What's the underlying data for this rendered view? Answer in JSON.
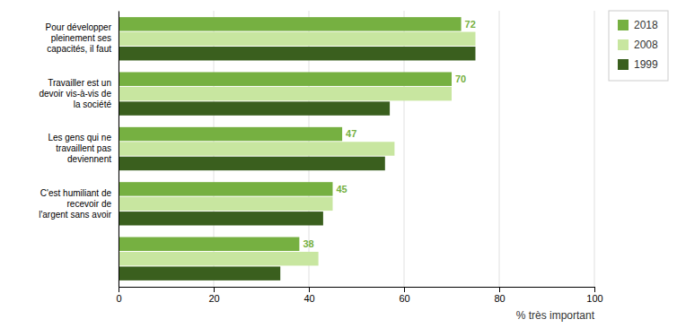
{
  "chart_data": {
    "type": "bar",
    "orientation": "horizontal",
    "categories": [
      "Pour développer\npleinement ses\ncapacités, il faut",
      "Travailler est un\ndevoir vis-à-vis de\nla société",
      "Les gens qui ne\ntravaillent pas\ndeviennent",
      "C'est humiliant de\nrecevoir de\nl'argent sans avoir",
      null
    ],
    "series": [
      {
        "name": "2018",
        "color": "#76b041",
        "values": [
          72,
          70,
          47,
          45,
          38
        ],
        "data_labels": true
      },
      {
        "name": "2008",
        "color": "#c8e6a0",
        "values": [
          75,
          70,
          58,
          45,
          42
        ]
      },
      {
        "name": "1999",
        "color": "#3a5f1e",
        "values": [
          75,
          57,
          56,
          43,
          34
        ]
      }
    ],
    "xlabel": "% très important",
    "xlim": [
      0,
      100
    ],
    "xticks": [
      0,
      20,
      40,
      60,
      80,
      100
    ],
    "grid": true,
    "legend": "right"
  }
}
